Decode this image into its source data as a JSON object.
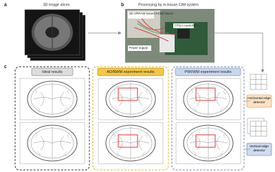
{
  "panels": {
    "a": {
      "letter": "a",
      "title": "3D image slices"
    },
    "b": {
      "letter": "b",
      "title": "Processing by in-house CIM system",
      "labels": [
        "3D VRRAM based InCIM macro",
        "FPGA controller",
        "Power supply"
      ]
    },
    "c": {
      "letter": "c",
      "columns": [
        "Ideal results",
        "AD/NWM experiment results",
        "PWI/WM experiment results"
      ],
      "detectors": [
        "Horizontal edge detector",
        "Vertical edge detector"
      ]
    }
  }
}
